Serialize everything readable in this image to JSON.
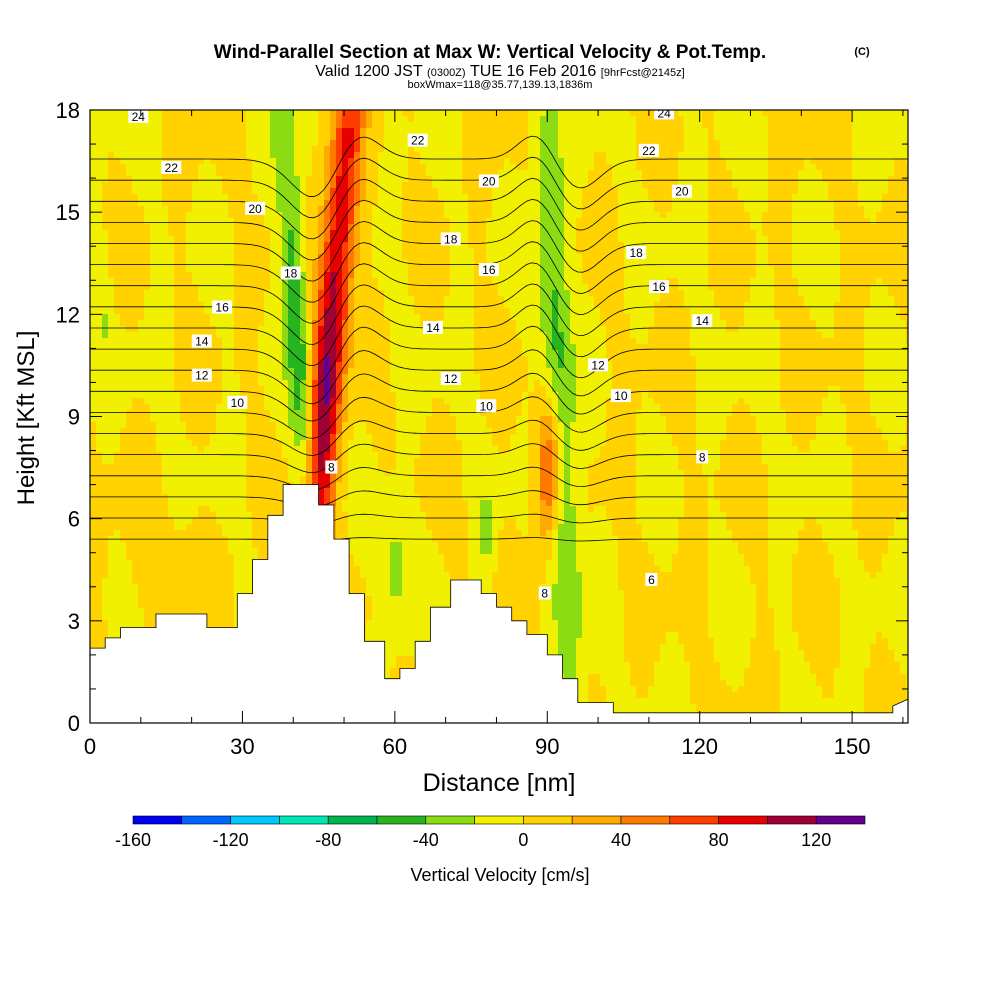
{
  "header": {
    "title": "Wind-Parallel Section at Max W: Vertical Velocity & Pot.Temp.",
    "copyright": "(C)",
    "valid_prefix": "Valid 1200 JST",
    "valid_utc": "(0300Z)",
    "valid_date": "TUE 16 Feb 2016",
    "forecast_info": "[9hrFcst@2145z]",
    "box_info": "boxWmax=118@35.77,139.13,1836m"
  },
  "chart_data": {
    "type": "heatmap",
    "xlabel": "Distance [nm]",
    "ylabel": "Height [Kft MSL]",
    "xlim": [
      0,
      161
    ],
    "ylim": [
      0,
      18
    ],
    "x_ticks": [
      "0",
      "30",
      "60",
      "90",
      "120",
      "150"
    ],
    "x_tick_values": [
      0,
      30,
      60,
      90,
      120,
      150
    ],
    "y_ticks": [
      "0",
      "3",
      "6",
      "9",
      "12",
      "15",
      "18"
    ],
    "y_tick_values": [
      0,
      3,
      6,
      9,
      12,
      15,
      18
    ],
    "colorbar": {
      "label": "Vertical Velocity [cm/s]",
      "min": -160,
      "max": 140,
      "step": 20,
      "tick_labels": [
        "-160",
        "-120",
        "-80",
        "-40",
        "0",
        "40",
        "80",
        "120"
      ],
      "tick_values": [
        -160,
        -120,
        -80,
        -40,
        0,
        40,
        80,
        120
      ],
      "colors": [
        "#0000f0",
        "#0064ff",
        "#00c8ff",
        "#00e6b4",
        "#00b450",
        "#28b41e",
        "#8cdc14",
        "#f0f000",
        "#ffd200",
        "#ffaa00",
        "#ff7800",
        "#ff3c00",
        "#e60000",
        "#a00032",
        "#64008c"
      ]
    },
    "terrain": [
      [
        0,
        2.2
      ],
      [
        3,
        2.2
      ],
      [
        3,
        2.5
      ],
      [
        6,
        2.5
      ],
      [
        6,
        2.8
      ],
      [
        13,
        2.8
      ],
      [
        13,
        3.2
      ],
      [
        23,
        3.2
      ],
      [
        23,
        2.8
      ],
      [
        29,
        2.8
      ],
      [
        29,
        3.8
      ],
      [
        32,
        3.8
      ],
      [
        32,
        4.8
      ],
      [
        35,
        4.8
      ],
      [
        35,
        6.1
      ],
      [
        38,
        6.1
      ],
      [
        38,
        7.0
      ],
      [
        45,
        7.0
      ],
      [
        45,
        6.4
      ],
      [
        48,
        6.4
      ],
      [
        48,
        5.4
      ],
      [
        51,
        5.4
      ],
      [
        51,
        3.8
      ],
      [
        54,
        3.8
      ],
      [
        54,
        2.4
      ],
      [
        58,
        2.4
      ],
      [
        58,
        1.3
      ],
      [
        61,
        1.3
      ],
      [
        61,
        1.6
      ],
      [
        64,
        1.6
      ],
      [
        64,
        2.4
      ],
      [
        67,
        2.4
      ],
      [
        67,
        3.4
      ],
      [
        71,
        3.4
      ],
      [
        71,
        4.2
      ],
      [
        77,
        4.2
      ],
      [
        77,
        3.8
      ],
      [
        80,
        3.8
      ],
      [
        80,
        3.4
      ],
      [
        83,
        3.4
      ],
      [
        83,
        3.0
      ],
      [
        86,
        3.0
      ],
      [
        86,
        2.6
      ],
      [
        90,
        2.6
      ],
      [
        90,
        2.0
      ],
      [
        93,
        2.0
      ],
      [
        93,
        1.3
      ],
      [
        96,
        1.3
      ],
      [
        96,
        0.6
      ],
      [
        103,
        0.6
      ],
      [
        103,
        0.3
      ],
      [
        158,
        0.3
      ],
      [
        158,
        0.5
      ],
      [
        161,
        0.7
      ]
    ],
    "updrafts": [
      {
        "x0": 41,
        "x1": 51,
        "y": 18,
        "half_width": 3.3,
        "peak": 120
      },
      {
        "x0": 89.5,
        "x1": 90.5,
        "y": 7.5,
        "half_width": 2.5,
        "peak": 80
      }
    ],
    "downdrafts": [
      {
        "x0": 46,
        "x1": 38,
        "y": 18,
        "half_width": 2.5,
        "peak": -55
      },
      {
        "x0": 95,
        "x1": 90,
        "y": 17,
        "half_width": 3.0,
        "peak": -50
      },
      {
        "x": 60,
        "y": 4.5,
        "half_width": 3.0,
        "peak": -30
      },
      {
        "x": 78,
        "y": 5.5,
        "half_width": 1.2,
        "peak": -25
      },
      {
        "x": 2.5,
        "y": 12,
        "half_width": 1.3,
        "peak": -18
      }
    ],
    "theta_isentropes": [
      6,
      7,
      8,
      9,
      10,
      11,
      12,
      13,
      14,
      15,
      16,
      17,
      18,
      19,
      20,
      21,
      22,
      23,
      24
    ],
    "contour_labels": [
      {
        "text": "24",
        "x": 9.5,
        "y": 17.8
      },
      {
        "text": "22",
        "x": 16,
        "y": 16.3
      },
      {
        "text": "20",
        "x": 32.5,
        "y": 15.1
      },
      {
        "text": "18",
        "x": 39.5,
        "y": 13.2
      },
      {
        "text": "16",
        "x": 26,
        "y": 12.2
      },
      {
        "text": "14",
        "x": 22,
        "y": 11.2
      },
      {
        "text": "12",
        "x": 22,
        "y": 10.2
      },
      {
        "text": "10",
        "x": 29,
        "y": 9.4
      },
      {
        "text": "8",
        "x": 47.5,
        "y": 7.5
      },
      {
        "text": "22",
        "x": 64.5,
        "y": 17.1
      },
      {
        "text": "20",
        "x": 78.5,
        "y": 15.9
      },
      {
        "text": "18",
        "x": 71,
        "y": 14.2
      },
      {
        "text": "16",
        "x": 78.5,
        "y": 13.3
      },
      {
        "text": "14",
        "x": 67.5,
        "y": 11.6
      },
      {
        "text": "12",
        "x": 71,
        "y": 10.1
      },
      {
        "text": "10",
        "x": 78,
        "y": 9.3
      },
      {
        "text": "8",
        "x": 89.5,
        "y": 3.8
      },
      {
        "text": "24",
        "x": 113,
        "y": 17.9
      },
      {
        "text": "22",
        "x": 110,
        "y": 16.8
      },
      {
        "text": "20",
        "x": 116.5,
        "y": 15.6
      },
      {
        "text": "18",
        "x": 107.5,
        "y": 13.8
      },
      {
        "text": "16",
        "x": 112,
        "y": 12.8
      },
      {
        "text": "14",
        "x": 120.5,
        "y": 11.8
      },
      {
        "text": "12",
        "x": 100,
        "y": 10.5
      },
      {
        "text": "10",
        "x": 104.5,
        "y": 9.6
      },
      {
        "text": "8",
        "x": 120.5,
        "y": 7.8
      },
      {
        "text": "6",
        "x": 110.5,
        "y": 4.2
      }
    ]
  }
}
